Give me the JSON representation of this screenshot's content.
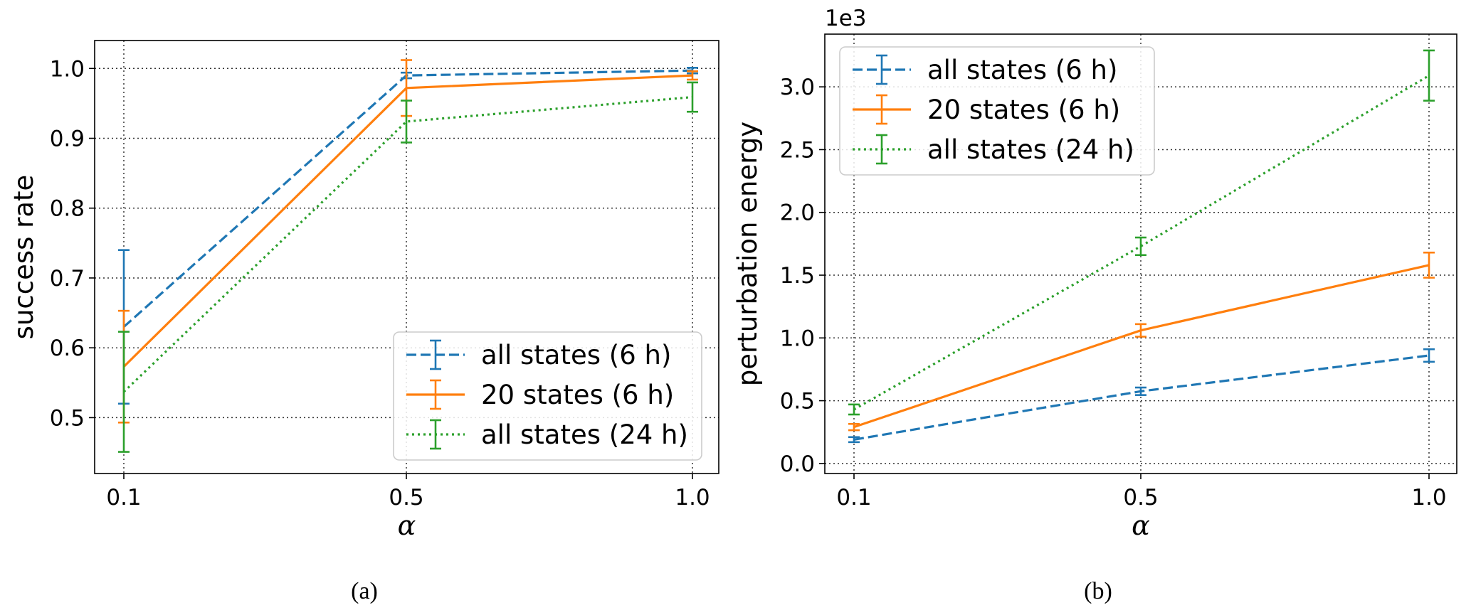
{
  "colors": {
    "blue": "#1f77b4",
    "orange": "#ff7f0e",
    "green": "#2ca02c"
  },
  "chart_data": [
    {
      "type": "line",
      "panel_caption": "(a)",
      "xlabel": "α",
      "ylabel": "success rate",
      "x": [
        0.1,
        0.5,
        1.0
      ],
      "x_tick_labels": [
        "0.1",
        "0.5",
        "1.0"
      ],
      "ylim": [
        0.42,
        1.04
      ],
      "y_ticks": [
        0.5,
        0.6,
        0.7,
        0.8,
        0.9,
        1.0
      ],
      "y_tick_labels": [
        "0.5",
        "0.6",
        "0.7",
        "0.8",
        "0.9",
        "1.0"
      ],
      "offset_text": "",
      "legend_position": "bottom-right",
      "grid": true,
      "series": [
        {
          "name": "all states (6 h)",
          "color": "blue",
          "style": "dashed",
          "values": [
            0.63,
            0.99,
            0.997
          ],
          "errors": [
            0.11,
            0.004,
            0.004
          ]
        },
        {
          "name": "20 states (6 h)",
          "color": "orange",
          "style": "solid",
          "values": [
            0.573,
            0.972,
            0.99
          ],
          "errors": [
            0.08,
            0.04,
            0.006
          ]
        },
        {
          "name": "all states (24 h)",
          "color": "green",
          "style": "dotted",
          "values": [
            0.537,
            0.924,
            0.959
          ],
          "errors": [
            0.086,
            0.03,
            0.021
          ]
        }
      ]
    },
    {
      "type": "line",
      "panel_caption": "(b)",
      "xlabel": "α",
      "ylabel": "perturbation energy",
      "x": [
        0.1,
        0.5,
        1.0
      ],
      "x_tick_labels": [
        "0.1",
        "0.5",
        "1.0"
      ],
      "ylim": [
        -0.08,
        3.42
      ],
      "y_ticks": [
        0.0,
        0.5,
        1.0,
        1.5,
        2.0,
        2.5,
        3.0
      ],
      "y_tick_labels": [
        "0.0",
        "0.5",
        "1.0",
        "1.5",
        "2.0",
        "2.5",
        "3.0"
      ],
      "offset_text": "1e3",
      "legend_position": "top-left",
      "grid": true,
      "series": [
        {
          "name": "all states (6 h)",
          "color": "blue",
          "style": "dashed",
          "values": [
            0.19,
            0.575,
            0.86
          ],
          "errors": [
            0.02,
            0.03,
            0.05
          ]
        },
        {
          "name": "20 states (6 h)",
          "color": "orange",
          "style": "solid",
          "values": [
            0.29,
            1.06,
            1.58
          ],
          "errors": [
            0.025,
            0.05,
            0.1
          ]
        },
        {
          "name": "all states (24 h)",
          "color": "green",
          "style": "dotted",
          "values": [
            0.43,
            1.73,
            3.09
          ],
          "errors": [
            0.04,
            0.07,
            0.2
          ]
        }
      ]
    }
  ]
}
